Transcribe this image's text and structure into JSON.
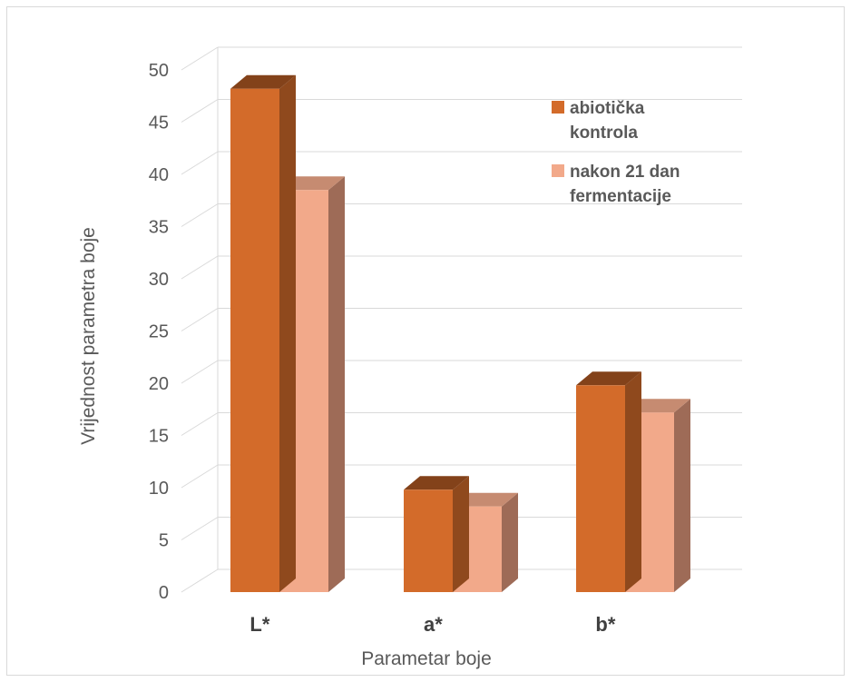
{
  "chart_data": {
    "type": "bar",
    "title": "",
    "xlabel": "Parametar boje",
    "ylabel": "Vrijednost parametra boje",
    "categories": [
      "L*",
      "a*",
      "b*"
    ],
    "series": [
      {
        "name": "abiotička kontrola",
        "values": [
          48.2,
          9.8,
          19.8
        ],
        "color": "#d36b2a"
      },
      {
        "name": "nakon 21 dan fermentacije",
        "values": [
          38.5,
          8.2,
          17.2
        ],
        "color": "#f2a98a"
      }
    ],
    "ylim": [
      0,
      50
    ],
    "yticks": [
      0,
      5,
      10,
      15,
      20,
      25,
      30,
      35,
      40,
      45,
      50
    ],
    "grid": true,
    "style": "3d-clustered-column",
    "legend": {
      "position": "top-right",
      "lines": [
        [
          "abiotička",
          "kontrola"
        ],
        [
          "nakon 21 dan",
          "fermentacije"
        ]
      ]
    }
  }
}
